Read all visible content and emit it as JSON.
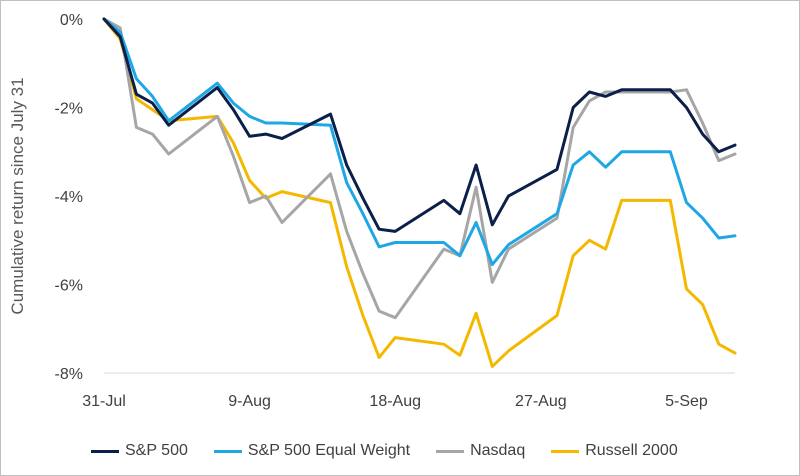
{
  "chart_data": {
    "type": "line",
    "title": "",
    "xlabel": "",
    "ylabel": "Cumulative return since July 31",
    "ylim": [
      -8,
      0
    ],
    "yticks": [
      0,
      -2,
      -4,
      -6,
      -8
    ],
    "ytick_labels": [
      "0%",
      "-2%",
      "-4%",
      "-6%",
      "-8%"
    ],
    "x_tick_labels": [
      "31-Jul",
      "9-Aug",
      "18-Aug",
      "27-Aug",
      "5-Sep"
    ],
    "x_tick_days": [
      0,
      9,
      18,
      27,
      36
    ],
    "x_days": [
      0,
      1,
      2,
      3,
      4,
      7,
      8,
      9,
      10,
      11,
      14,
      15,
      16,
      17,
      18,
      21,
      22,
      23,
      24,
      25,
      28,
      29,
      30,
      31,
      32,
      35,
      36,
      37,
      38,
      39
    ],
    "legend_position": "bottom",
    "grid": false,
    "series": [
      {
        "name": "S&P 500",
        "color": "#0b1f4b",
        "values": [
          0,
          -0.4,
          -1.7,
          -1.9,
          -2.4,
          -1.55,
          -2.05,
          -2.65,
          -2.6,
          -2.7,
          -2.15,
          -3.3,
          -4.05,
          -4.75,
          -4.8,
          -4.1,
          -4.4,
          -3.3,
          -4.65,
          -4.0,
          -3.4,
          -2.0,
          -1.65,
          -1.75,
          -1.6,
          -1.6,
          -2.0,
          -2.6,
          -3.0,
          -2.85
        ]
      },
      {
        "name": "S&P 500 Equal Weight",
        "color": "#1ea7e4",
        "values": [
          0,
          -0.3,
          -1.35,
          -1.75,
          -2.3,
          -1.45,
          -1.9,
          -2.2,
          -2.35,
          -2.35,
          -2.4,
          -3.7,
          -4.4,
          -5.15,
          -5.05,
          -5.05,
          -5.35,
          -4.6,
          -5.55,
          -5.1,
          -4.4,
          -3.3,
          -3.0,
          -3.35,
          -3.0,
          -3.0,
          -4.15,
          -4.5,
          -4.95,
          -4.9
        ]
      },
      {
        "name": "Nasdaq",
        "color": "#a6a6a6",
        "values": [
          0,
          -0.2,
          -2.45,
          -2.6,
          -3.05,
          -2.2,
          -3.1,
          -4.15,
          -4.0,
          -4.6,
          -3.5,
          -4.8,
          -5.75,
          -6.6,
          -6.75,
          -5.2,
          -5.35,
          -3.8,
          -5.95,
          -5.2,
          -4.5,
          -2.45,
          -1.85,
          -1.65,
          -1.65,
          -1.65,
          -1.6,
          -2.35,
          -3.2,
          -3.05
        ]
      },
      {
        "name": "Russell 2000",
        "color": "#f5b800",
        "values": [
          0,
          -0.45,
          -1.8,
          -2.05,
          -2.3,
          -2.2,
          -2.8,
          -3.65,
          -4.05,
          -3.9,
          -4.15,
          -5.6,
          -6.7,
          -7.65,
          -7.2,
          -7.35,
          -7.6,
          -6.65,
          -7.85,
          -7.5,
          -6.7,
          -5.35,
          -5.0,
          -5.2,
          -4.1,
          -4.1,
          -6.1,
          -6.45,
          -7.35,
          -7.55
        ]
      }
    ]
  }
}
